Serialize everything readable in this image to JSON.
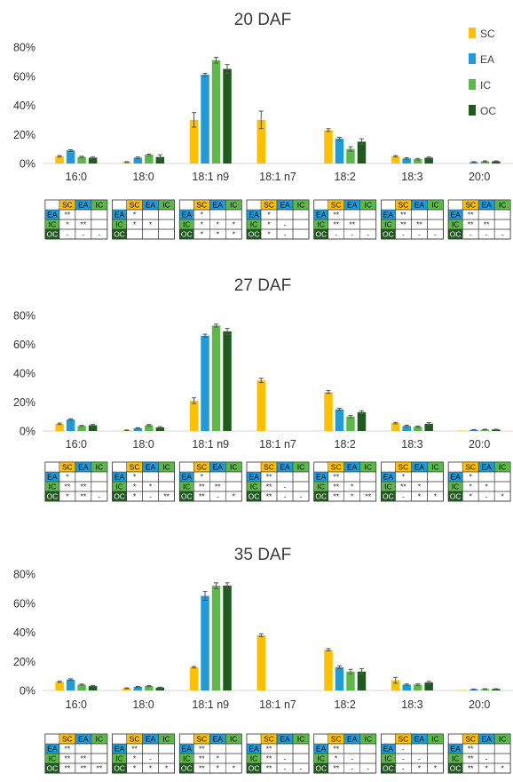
{
  "legend": [
    {
      "name": "SC",
      "color": "#FFC000"
    },
    {
      "name": "EA",
      "color": "#1F9BDA"
    },
    {
      "name": "IC",
      "color": "#5DB84A"
    },
    {
      "name": "OC",
      "color": "#1F5A1F"
    }
  ],
  "chart_data": [
    {
      "type": "bar",
      "title": "20 DAF",
      "categories": [
        "16:0",
        "18:0",
        "18:1 n9",
        "18:1 n7",
        "18:2",
        "18:3",
        "20:0"
      ],
      "ylim": [
        0,
        80
      ],
      "yticks": [
        "0%",
        "20%",
        "40%",
        "60%",
        "80%"
      ],
      "grid": false,
      "legend_position": "top-right",
      "series": [
        {
          "name": "SC",
          "values": [
            5,
            1,
            30,
            30,
            23,
            5,
            0
          ],
          "errors": [
            0.5,
            0.3,
            5,
            6,
            1,
            0.5,
            0
          ]
        },
        {
          "name": "EA",
          "values": [
            9,
            4,
            61,
            0,
            17,
            3.5,
            1
          ],
          "errors": [
            0.5,
            0.5,
            1,
            0,
            1,
            0.5,
            0.3
          ]
        },
        {
          "name": "IC",
          "values": [
            4.5,
            6,
            71,
            0,
            10,
            3,
            1.5
          ],
          "errors": [
            0.5,
            0.5,
            2,
            0,
            1.5,
            0.5,
            0.3
          ]
        },
        {
          "name": "OC",
          "values": [
            4,
            4.5,
            65,
            0,
            15,
            4,
            1.5
          ],
          "errors": [
            0.5,
            1.5,
            3,
            0,
            2,
            0.5,
            0.3
          ]
        }
      ],
      "significance": [
        {
          "rows": [
            [
              "**",
              "",
              ""
            ],
            [
              "*",
              "**",
              ""
            ],
            [
              "-",
              "-",
              "-"
            ]
          ]
        },
        {
          "rows": [
            [
              "*",
              "",
              ""
            ],
            [
              "*",
              "*",
              ""
            ],
            [
              "",
              "",
              ""
            ]
          ]
        },
        {
          "rows": [
            [
              "*",
              "",
              ""
            ],
            [
              "*",
              "*",
              "*"
            ],
            [
              "*",
              "*",
              "*"
            ]
          ]
        },
        {
          "rows": [
            [
              "*",
              "",
              ""
            ],
            [
              "*",
              "-",
              ""
            ],
            [
              "*",
              "-",
              ""
            ]
          ]
        },
        {
          "rows": [
            [
              "**",
              "",
              ""
            ],
            [
              "**",
              "**",
              ""
            ],
            [
              "-",
              "-",
              "-"
            ]
          ]
        },
        {
          "rows": [
            [
              "**",
              "",
              ""
            ],
            [
              "**",
              "**",
              ""
            ],
            [
              "-",
              "-",
              "-"
            ]
          ]
        },
        {
          "rows": [
            [
              "**",
              "",
              ""
            ],
            [
              "**",
              "**",
              ""
            ],
            [
              "-",
              "-",
              "-"
            ]
          ]
        }
      ]
    },
    {
      "type": "bar",
      "title": "27 DAF",
      "categories": [
        "16:0",
        "18:0",
        "18:1 n9",
        "18:1 n7",
        "18:2",
        "18:3",
        "20:0"
      ],
      "ylim": [
        0,
        80
      ],
      "yticks": [
        "0%",
        "20%",
        "40%",
        "60%",
        "80%"
      ],
      "grid": false,
      "series": [
        {
          "name": "SC",
          "values": [
            5,
            0.5,
            21,
            35,
            27,
            5.5,
            0.3
          ],
          "errors": [
            0.5,
            0.2,
            2,
            1.5,
            1,
            0.5,
            0.1
          ]
        },
        {
          "name": "EA",
          "values": [
            8,
            2,
            66,
            0,
            15,
            3.5,
            0.8
          ],
          "errors": [
            0.5,
            0.3,
            1,
            0,
            0.8,
            0.5,
            0.2
          ]
        },
        {
          "name": "IC",
          "values": [
            3.5,
            4,
            73,
            0,
            10,
            3,
            1
          ],
          "errors": [
            0.4,
            0.4,
            1,
            0,
            0.8,
            0.4,
            0.2
          ]
        },
        {
          "name": "OC",
          "values": [
            4,
            2.5,
            69,
            0,
            13,
            5,
            1
          ],
          "errors": [
            0.5,
            0.5,
            2,
            0,
            1,
            0.8,
            0.2
          ]
        }
      ],
      "significance": [
        {
          "rows": [
            [
              "*",
              "",
              ""
            ],
            [
              "**",
              "**",
              ""
            ],
            [
              "*",
              "**",
              "-"
            ]
          ]
        },
        {
          "rows": [
            [
              "*",
              "",
              ""
            ],
            [
              "*",
              "*",
              ""
            ],
            [
              "*",
              "-",
              "**"
            ]
          ]
        },
        {
          "rows": [
            [
              "*",
              "",
              ""
            ],
            [
              "**",
              "**",
              ""
            ],
            [
              "**",
              "-",
              "*"
            ]
          ]
        },
        {
          "rows": [
            [
              "**",
              "",
              ""
            ],
            [
              "**",
              "-",
              ""
            ],
            [
              "**",
              "-",
              "-"
            ]
          ]
        },
        {
          "rows": [
            [
              "**",
              "",
              ""
            ],
            [
              "**",
              "*",
              ""
            ],
            [
              "**",
              "*",
              "**"
            ]
          ]
        },
        {
          "rows": [
            [
              "*",
              "",
              ""
            ],
            [
              "**",
              "*",
              ""
            ],
            [
              "-",
              "*",
              "*"
            ]
          ]
        },
        {
          "rows": [
            [
              "*",
              "",
              ""
            ],
            [
              "*",
              "*",
              ""
            ],
            [
              "*",
              "-",
              "*"
            ]
          ]
        }
      ]
    },
    {
      "type": "bar",
      "title": "35 DAF",
      "categories": [
        "16:0",
        "18:0",
        "18:1 n9",
        "18:1 n7",
        "18:2",
        "18:3",
        "20:0"
      ],
      "ylim": [
        0,
        80
      ],
      "yticks": [
        "0%",
        "20%",
        "40%",
        "60%",
        "80%"
      ],
      "grid": false,
      "series": [
        {
          "name": "SC",
          "values": [
            6,
            1.5,
            16,
            38,
            28,
            7,
            0.3
          ],
          "errors": [
            0.5,
            0.3,
            0.5,
            1,
            0.8,
            2,
            0.1
          ]
        },
        {
          "name": "EA",
          "values": [
            7.5,
            2.5,
            65,
            0,
            16,
            4,
            0.8
          ],
          "errors": [
            0.5,
            0.3,
            3,
            0,
            1,
            0.5,
            0.2
          ]
        },
        {
          "name": "IC",
          "values": [
            4,
            3,
            72,
            0,
            13,
            4,
            1
          ],
          "errors": [
            0.4,
            0.3,
            2,
            0,
            1.5,
            0.5,
            0.2
          ]
        },
        {
          "name": "OC",
          "values": [
            3,
            2,
            72,
            0,
            13,
            5.5,
            1
          ],
          "errors": [
            0.4,
            0.3,
            2,
            0,
            2,
            0.8,
            0.2
          ]
        }
      ],
      "significance": [
        {
          "rows": [
            [
              "**",
              "",
              ""
            ],
            [
              "**",
              "**",
              ""
            ],
            [
              "**",
              "**",
              "**"
            ]
          ]
        },
        {
          "rows": [
            [
              "**",
              "",
              ""
            ],
            [
              "*",
              "-",
              ""
            ],
            [
              "*",
              "*",
              "*"
            ]
          ]
        },
        {
          "rows": [
            [
              "**",
              "",
              ""
            ],
            [
              "**",
              "*",
              ""
            ],
            [
              "**",
              "*",
              "*"
            ]
          ]
        },
        {
          "rows": [
            [
              "**",
              "",
              ""
            ],
            [
              "**",
              "-",
              ""
            ],
            [
              "**",
              "-",
              "-"
            ]
          ]
        },
        {
          "rows": [
            [
              "**",
              "",
              ""
            ],
            [
              "*",
              "-",
              ""
            ],
            [
              "**",
              "-",
              "-"
            ]
          ]
        },
        {
          "rows": [
            [
              "-",
              "",
              ""
            ],
            [
              "-",
              "-",
              ""
            ],
            [
              "-",
              "*",
              "*"
            ]
          ]
        },
        {
          "rows": [
            [
              "**",
              "",
              ""
            ],
            [
              "**",
              "-",
              ""
            ],
            [
              "**",
              "*",
              "*"
            ]
          ]
        }
      ]
    }
  ]
}
